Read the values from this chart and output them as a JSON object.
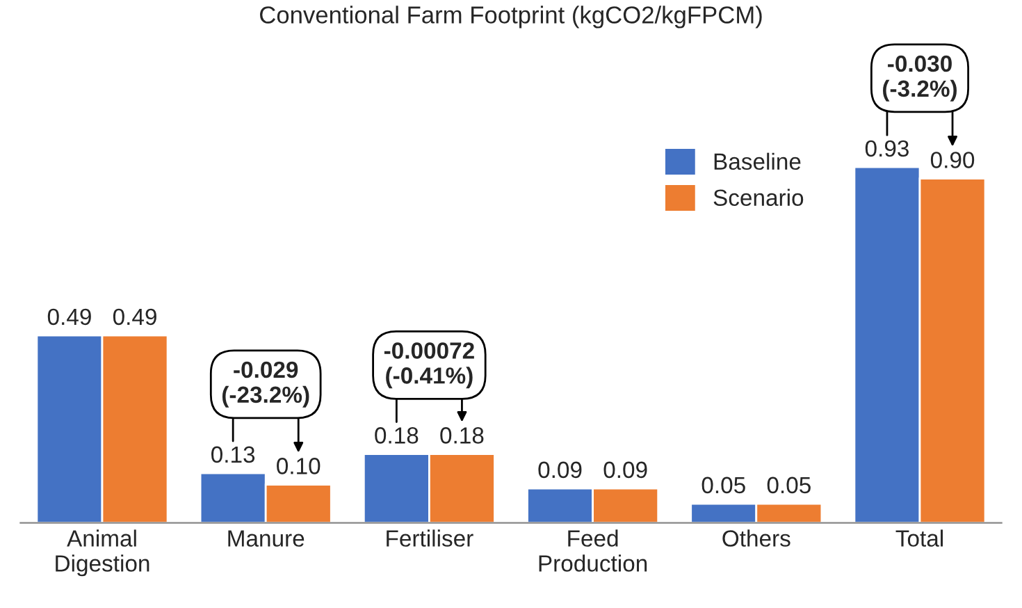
{
  "chart_data": {
    "type": "bar",
    "title": "Conventional Farm Footprint (kgCO2/kgFPCM)",
    "categories": [
      "Animal\nDigestion",
      "Manure",
      "Fertiliser",
      "Feed\nProduction",
      "Others",
      "Total"
    ],
    "series": [
      {
        "name": "Baseline",
        "color": "#4472c4",
        "values": [
          0.49,
          0.13,
          0.18,
          0.09,
          0.05,
          0.93
        ],
        "value_labels": [
          "0.49",
          "0.13",
          "0.18",
          "0.09",
          "0.05",
          "0.93"
        ]
      },
      {
        "name": "Scenario",
        "color": "#ed7d31",
        "values": [
          0.49,
          0.1,
          0.18,
          0.09,
          0.05,
          0.9
        ],
        "value_labels": [
          "0.49",
          "0.10",
          "0.18",
          "0.09",
          "0.05",
          "0.90"
        ]
      }
    ],
    "legend": "top right",
    "grid": false,
    "annotations": [
      "-0.029\n(-23.2%)",
      "-0.00072\n(-0.41%)",
      "-0.030\n(-3.2%)"
    ]
  }
}
